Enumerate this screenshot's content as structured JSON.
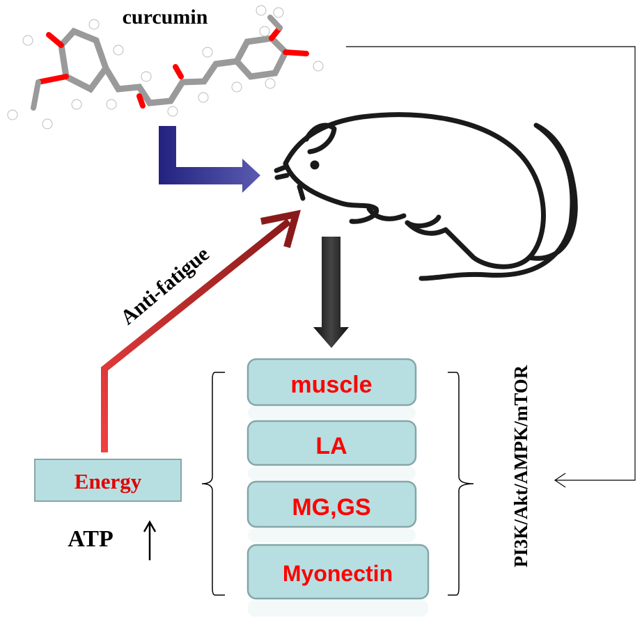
{
  "molecule": {
    "label": "curcumin"
  },
  "pathway": {
    "label": "PI3K/Akt/AMPK/mTOR"
  },
  "effect": {
    "label": "Anti-fatigue"
  },
  "energy": {
    "label": "Energy",
    "atp_label": "ATP"
  },
  "markers": [
    {
      "label": "muscle"
    },
    {
      "label": "LA"
    },
    {
      "label": "MG,GS"
    },
    {
      "label": "Myonectin"
    }
  ],
  "colors": {
    "box_fill": "#b7dfe2",
    "box_stroke": "#86a6a8",
    "marker_text": "#ff0000",
    "energy_text": "#e00000",
    "blue_arrow": "#2a2a8c",
    "red_arrow": "#e03030",
    "atom_oxygen": "#ff0000",
    "atom_carbon": "#9a9a9a",
    "atom_hydrogen": "#ffffff"
  }
}
